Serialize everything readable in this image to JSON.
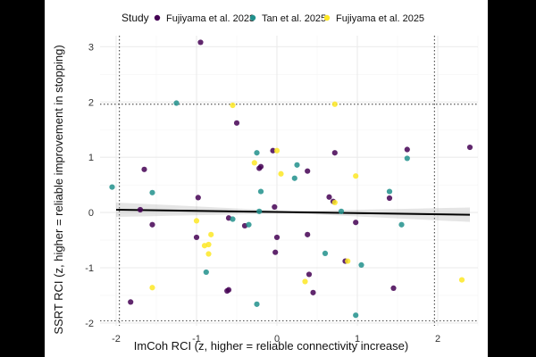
{
  "chart_data": {
    "type": "scatter",
    "xlabel": "ImCoh RCI (z, higher = reliable connectivity increase)",
    "ylabel": "SSRT RCI (z, higher = reliable improvement in stopping)",
    "xlim": [
      -2.2,
      2.5
    ],
    "ylim": [
      -2.05,
      3.2
    ],
    "x_ticks": [
      -2,
      -1,
      0,
      1,
      2
    ],
    "y_ticks": [
      -2,
      -1,
      0,
      1,
      2,
      3
    ],
    "reference_lines": {
      "x": [
        -1.96,
        1.96
      ],
      "y": [
        -1.96,
        1.96
      ],
      "style": "dotted"
    },
    "grid": true,
    "legend": {
      "title": "Study",
      "position": "top",
      "entries": [
        {
          "label": "Fujiyama et al. 2023",
          "color": "#440154"
        },
        {
          "label": "Tan et al. 2025",
          "color": "#21908C"
        },
        {
          "label": "Fujiyama et al. 2025",
          "color": "#FDE725"
        }
      ]
    },
    "fit_line": {
      "x": [
        -2.0,
        2.4
      ],
      "y": [
        0.05,
        -0.04
      ]
    },
    "series": [
      {
        "name": "Fujiyama et al. 2023",
        "color": "#440154",
        "points": [
          {
            "x": -0.95,
            "y": 3.08
          },
          {
            "x": -1.65,
            "y": 0.78
          },
          {
            "x": -1.7,
            "y": 0.05
          },
          {
            "x": -1.55,
            "y": -0.22
          },
          {
            "x": -1.82,
            "y": -1.62
          },
          {
            "x": -0.5,
            "y": 1.62
          },
          {
            "x": -0.98,
            "y": 0.27
          },
          {
            "x": -1.0,
            "y": -0.45
          },
          {
            "x": -0.6,
            "y": -0.1
          },
          {
            "x": -0.6,
            "y": -1.4
          },
          {
            "x": -0.62,
            "y": -1.42
          },
          {
            "x": -0.4,
            "y": -0.24
          },
          {
            "x": -0.2,
            "y": 0.83
          },
          {
            "x": -0.22,
            "y": 0.8
          },
          {
            "x": -0.05,
            "y": 1.12
          },
          {
            "x": -0.03,
            "y": 0.1
          },
          {
            "x": -0.02,
            "y": -0.72
          },
          {
            "x": 0.0,
            "y": -0.45
          },
          {
            "x": 0.38,
            "y": 0.75
          },
          {
            "x": 0.38,
            "y": -0.4
          },
          {
            "x": 0.4,
            "y": -1.12
          },
          {
            "x": 0.45,
            "y": -1.45
          },
          {
            "x": 0.65,
            "y": 0.28
          },
          {
            "x": 0.7,
            "y": 0.2
          },
          {
            "x": 0.72,
            "y": 1.08
          },
          {
            "x": 0.85,
            "y": -0.88
          },
          {
            "x": 0.98,
            "y": -0.18
          },
          {
            "x": 1.45,
            "y": -1.37
          },
          {
            "x": 1.62,
            "y": 1.14
          },
          {
            "x": 2.4,
            "y": 1.18
          },
          {
            "x": 1.4,
            "y": 0.26
          }
        ]
      },
      {
        "name": "Tan et al. 2025",
        "color": "#21908C",
        "points": [
          {
            "x": -2.05,
            "y": 0.46
          },
          {
            "x": -1.25,
            "y": 1.98
          },
          {
            "x": -1.55,
            "y": 0.36
          },
          {
            "x": -0.88,
            "y": -1.08
          },
          {
            "x": -0.55,
            "y": -0.12
          },
          {
            "x": -0.35,
            "y": -0.22
          },
          {
            "x": -0.25,
            "y": 1.08
          },
          {
            "x": -0.22,
            "y": 0.02
          },
          {
            "x": -0.2,
            "y": 0.38
          },
          {
            "x": -0.25,
            "y": -1.66
          },
          {
            "x": 0.25,
            "y": 0.86
          },
          {
            "x": 0.22,
            "y": 0.62
          },
          {
            "x": 0.6,
            "y": -0.74
          },
          {
            "x": 0.8,
            "y": 0.02
          },
          {
            "x": 0.98,
            "y": -1.86
          },
          {
            "x": 1.05,
            "y": -0.95
          },
          {
            "x": 1.4,
            "y": 0.38
          },
          {
            "x": 1.55,
            "y": -0.22
          },
          {
            "x": 1.62,
            "y": 0.98
          }
        ]
      },
      {
        "name": "Fujiyama et al. 2025",
        "color": "#FDE725",
        "points": [
          {
            "x": -0.55,
            "y": 1.94
          },
          {
            "x": -0.85,
            "y": -0.58
          },
          {
            "x": -0.9,
            "y": -0.6
          },
          {
            "x": -0.85,
            "y": -0.75
          },
          {
            "x": -0.82,
            "y": -0.4
          },
          {
            "x": -1.0,
            "y": -0.15
          },
          {
            "x": -1.55,
            "y": -1.36
          },
          {
            "x": -0.28,
            "y": 0.9
          },
          {
            "x": 0.0,
            "y": 1.12
          },
          {
            "x": 0.05,
            "y": 0.7
          },
          {
            "x": 0.35,
            "y": -1.25
          },
          {
            "x": 0.72,
            "y": 0.18
          },
          {
            "x": 0.72,
            "y": 1.96
          },
          {
            "x": 0.88,
            "y": -0.88
          },
          {
            "x": 0.98,
            "y": 0.66
          },
          {
            "x": 2.3,
            "y": -1.22
          }
        ]
      }
    ]
  }
}
